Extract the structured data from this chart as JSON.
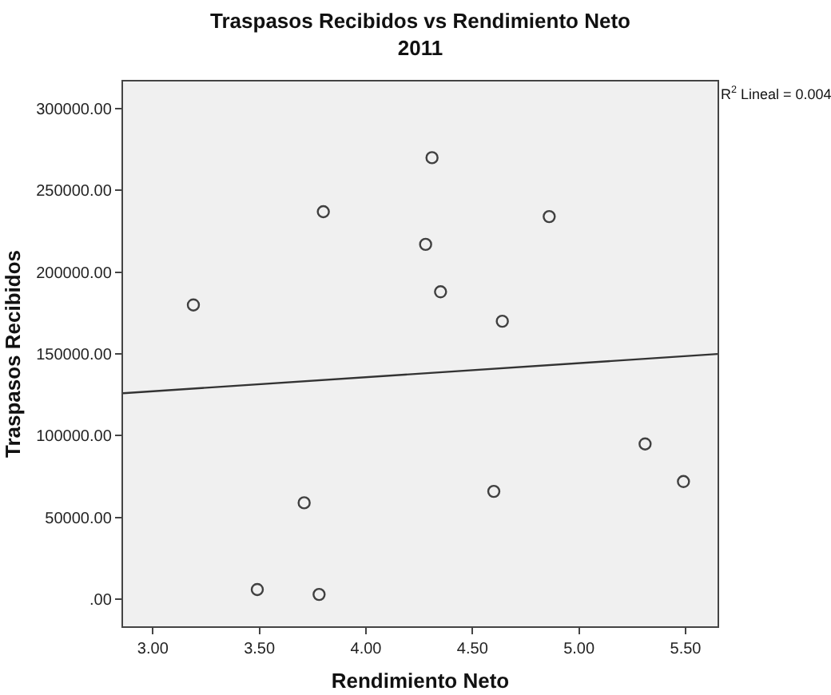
{
  "chart_data": {
    "type": "scatter",
    "title": "Traspasos Recibidos vs Rendimiento Neto",
    "subtitle": "2011",
    "xlabel": "Rendimiento Neto",
    "ylabel": "Traspasos Recibidos",
    "xlim": [
      2.86,
      5.65
    ],
    "xticks": [
      {
        "value": 3,
        "label": "3.00"
      },
      {
        "value": 3.5,
        "label": "3.50"
      },
      {
        "value": 4,
        "label": "4.00"
      },
      {
        "value": 4.5,
        "label": "4.50"
      },
      {
        "value": 5,
        "label": "5.00"
      },
      {
        "value": 5.5,
        "label": "5.50"
      }
    ],
    "ylim": [
      -16500,
      316600
    ],
    "yticks": [
      {
        "value": 0,
        "label": ".00"
      },
      {
        "value": 50000,
        "label": "50000.00"
      },
      {
        "value": 100000,
        "label": "100000.00"
      },
      {
        "value": 150000,
        "label": "150000.00"
      },
      {
        "value": 200000,
        "label": "200000.00"
      },
      {
        "value": 250000,
        "label": "250000.00"
      },
      {
        "value": 300000,
        "label": "300000.00"
      }
    ],
    "grid": false,
    "marker": "circle",
    "series": [
      {
        "color": "#404040",
        "x": [
          3.19,
          3.8,
          4.31,
          4.28,
          4.35,
          4.64,
          4.86,
          5.31,
          5.49,
          4.6,
          3.71,
          3.49,
          3.78
        ],
        "values": [
          180000,
          237000,
          270000,
          217000,
          188000,
          170000,
          234000,
          95000,
          72000,
          66000,
          59000,
          6000,
          3000
        ]
      },
      {
        "type": "line",
        "color": "#333333",
        "marker": "none",
        "x": [
          2.86,
          5.65
        ],
        "values": [
          126000,
          150000
        ]
      }
    ],
    "annotations": [
      "R$^{2}$ Lineal = 0.004"
    ]
  }
}
